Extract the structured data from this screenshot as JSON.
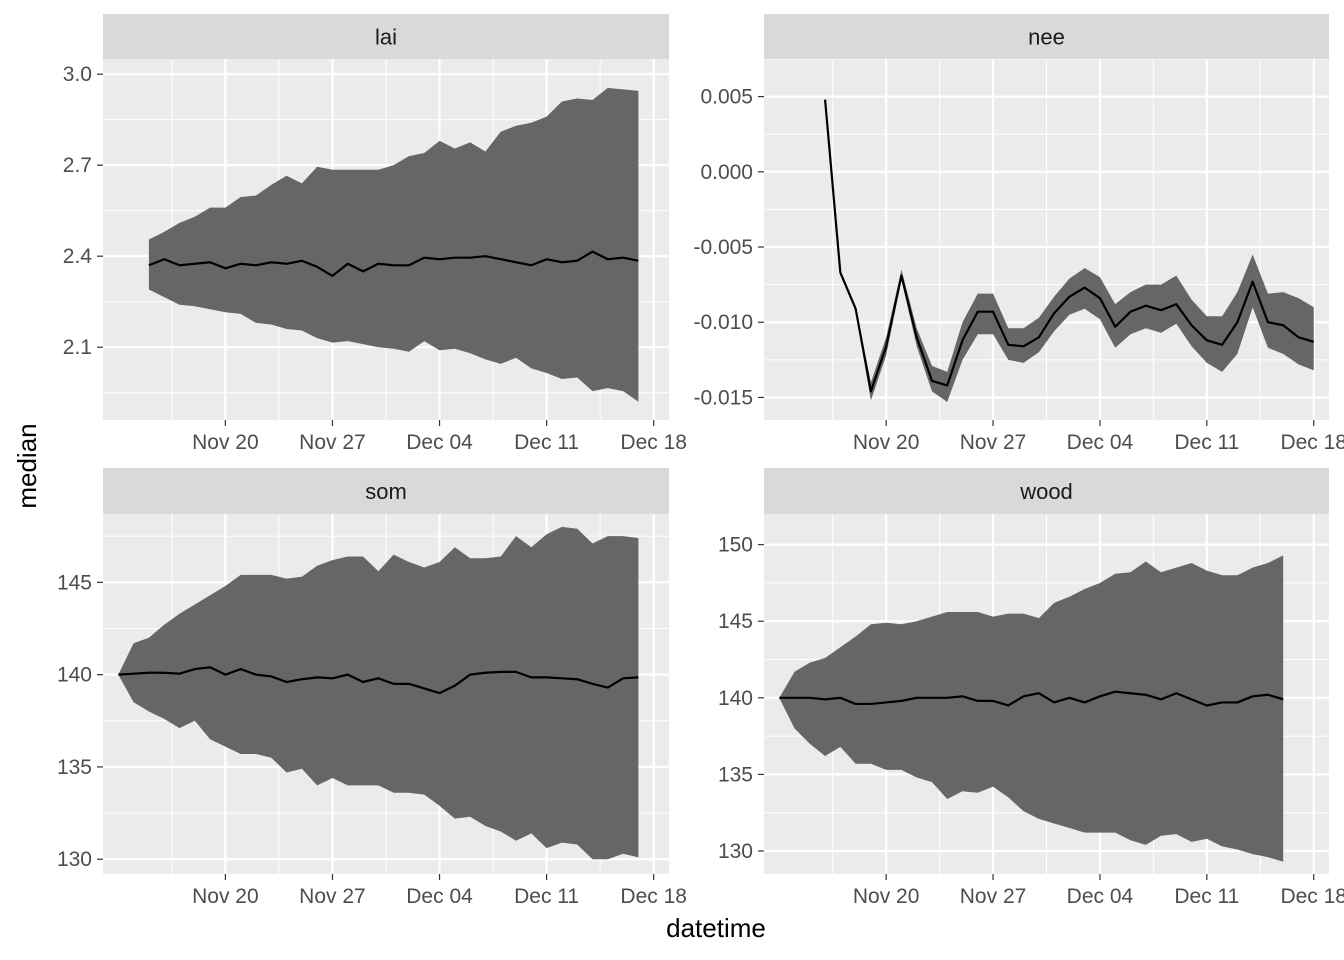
{
  "figure": {
    "xlabel": "datetime",
    "ylabel": "median"
  },
  "chart_data": {
    "type": "area",
    "description_of_marks": "faceted ribbon (gray band) with median line",
    "x": [
      "2023-11-16",
      "2023-11-17",
      "2023-11-18",
      "2023-11-19",
      "2023-11-20",
      "2023-11-21",
      "2023-11-22",
      "2023-11-23",
      "2023-11-24",
      "2023-11-25",
      "2023-11-26",
      "2023-11-27",
      "2023-11-28",
      "2023-11-29",
      "2023-11-30",
      "2023-12-01",
      "2023-12-02",
      "2023-12-03",
      "2023-12-04",
      "2023-12-05",
      "2023-12-06",
      "2023-12-07",
      "2023-12-08",
      "2023-12-09",
      "2023-12-10",
      "2023-12-11",
      "2023-12-12",
      "2023-12-13",
      "2023-12-14",
      "2023-12-15",
      "2023-12-16",
      "2023-12-17",
      "2023-12-18"
    ],
    "x_ticks": [
      {
        "date": "2023-11-20",
        "label": "Nov 20"
      },
      {
        "date": "2023-11-27",
        "label": "Nov 27"
      },
      {
        "date": "2023-12-04",
        "label": "Dec 04"
      },
      {
        "date": "2023-12-11",
        "label": "Dec 11"
      },
      {
        "date": "2023-12-18",
        "label": "Dec 18"
      }
    ],
    "xlim": [
      "2023-11-12",
      "2023-12-19"
    ],
    "grid": true,
    "colors": {
      "panel_background": "#ebebeb",
      "gridline": "#ffffff",
      "strip_background": "#d9d9d9",
      "ribbon": "#666666",
      "median_line": "#000000"
    },
    "panels": [
      {
        "name": "lai",
        "x_start": "2023-11-15",
        "ylim": [
          1.86,
          3.05
        ],
        "y_ticks": [
          {
            "value": 2.1,
            "label": "2.1"
          },
          {
            "value": 2.4,
            "label": "2.4"
          },
          {
            "value": 2.7,
            "label": "2.7"
          },
          {
            "value": 3.0,
            "label": "3.0"
          }
        ],
        "median": [
          2.37,
          2.39,
          2.37,
          2.375,
          2.38,
          2.36,
          2.375,
          2.37,
          2.38,
          2.375,
          2.385,
          2.365,
          2.335,
          2.375,
          2.35,
          2.375,
          2.37,
          2.37,
          2.395,
          2.39,
          2.395,
          2.395,
          2.4,
          2.39,
          2.38,
          2.37,
          2.39,
          2.38,
          2.385,
          2.415,
          2.39,
          2.395,
          2.385
        ],
        "lower": [
          2.29,
          2.265,
          2.24,
          2.235,
          2.225,
          2.215,
          2.21,
          2.18,
          2.175,
          2.16,
          2.155,
          2.13,
          2.115,
          2.12,
          2.11,
          2.1,
          2.095,
          2.085,
          2.12,
          2.09,
          2.095,
          2.08,
          2.06,
          2.045,
          2.065,
          2.03,
          2.015,
          1.995,
          2.0,
          1.955,
          1.965,
          1.955,
          1.92
        ],
        "upper": [
          2.455,
          2.48,
          2.51,
          2.53,
          2.56,
          2.56,
          2.595,
          2.6,
          2.635,
          2.665,
          2.64,
          2.695,
          2.685,
          2.685,
          2.685,
          2.685,
          2.7,
          2.73,
          2.74,
          2.78,
          2.755,
          2.775,
          2.745,
          2.81,
          2.83,
          2.84,
          2.86,
          2.91,
          2.92,
          2.915,
          2.955,
          2.95,
          2.945
        ]
      },
      {
        "name": "nee",
        "x_start": "2023-11-16",
        "ylim": [
          -0.0165,
          0.0075
        ],
        "y_ticks": [
          {
            "value": -0.015,
            "label": "-0.015"
          },
          {
            "value": -0.01,
            "label": "-0.010"
          },
          {
            "value": -0.005,
            "label": "-0.005"
          },
          {
            "value": 0.0,
            "label": "0.000"
          },
          {
            "value": 0.005,
            "label": "0.005"
          }
        ],
        "median": [
          0.0048,
          -0.0067,
          -0.0091,
          -0.0146,
          -0.0116,
          -0.0069,
          -0.011,
          -0.0139,
          -0.0142,
          -0.0112,
          -0.0093,
          -0.0093,
          -0.0115,
          -0.0116,
          -0.011,
          -0.0094,
          -0.0083,
          -0.0077,
          -0.0084,
          -0.0103,
          -0.0093,
          -0.0089,
          -0.0092,
          -0.0088,
          -0.0102,
          -0.0112,
          -0.0115,
          -0.01,
          -0.0073,
          -0.01,
          -0.0102,
          -0.011,
          -0.0113
        ],
        "lower": [
          0.0048,
          -0.0068,
          -0.0093,
          -0.0152,
          -0.0122,
          -0.0072,
          -0.0116,
          -0.0146,
          -0.0153,
          -0.0125,
          -0.0108,
          -0.0108,
          -0.0125,
          -0.0127,
          -0.012,
          -0.0106,
          -0.0095,
          -0.0091,
          -0.0098,
          -0.0117,
          -0.0108,
          -0.0104,
          -0.0107,
          -0.0101,
          -0.0116,
          -0.0127,
          -0.0133,
          -0.0121,
          -0.009,
          -0.0117,
          -0.0121,
          -0.0128,
          -0.0132
        ],
        "upper": [
          0.0048,
          -0.0066,
          -0.0089,
          -0.014,
          -0.011,
          -0.0065,
          -0.0104,
          -0.0129,
          -0.0133,
          -0.01,
          -0.0081,
          -0.0081,
          -0.0104,
          -0.0104,
          -0.0097,
          -0.0083,
          -0.0071,
          -0.0064,
          -0.007,
          -0.0088,
          -0.008,
          -0.0075,
          -0.0075,
          -0.0069,
          -0.0085,
          -0.0096,
          -0.0096,
          -0.008,
          -0.0055,
          -0.0081,
          -0.008,
          -0.0084,
          -0.009
        ]
      },
      {
        "name": "som",
        "x_start": "2023-11-13",
        "ylim": [
          129.2,
          148.7
        ],
        "y_ticks": [
          {
            "value": 130,
            "label": "130"
          },
          {
            "value": 135,
            "label": "135"
          },
          {
            "value": 140,
            "label": "140"
          },
          {
            "value": 145,
            "label": "145"
          }
        ],
        "median": [
          140.0,
          140.05,
          140.1,
          140.1,
          140.05,
          140.3,
          140.4,
          140.0,
          140.3,
          140.0,
          139.9,
          139.6,
          139.75,
          139.85,
          139.8,
          140.0,
          139.6,
          139.8,
          139.5,
          139.5,
          139.25,
          139.0,
          139.4,
          140.0,
          140.1,
          140.15,
          140.15,
          139.85,
          139.85,
          139.8,
          139.75,
          139.5,
          139.3,
          139.8,
          139.85
        ],
        "lower": [
          140.0,
          138.5,
          138.0,
          137.6,
          137.1,
          137.5,
          136.5,
          136.1,
          135.7,
          135.7,
          135.5,
          134.7,
          134.9,
          134.0,
          134.4,
          134.0,
          134.0,
          134.0,
          133.6,
          133.6,
          133.5,
          132.9,
          132.2,
          132.3,
          131.8,
          131.5,
          131.0,
          131.4,
          130.6,
          130.9,
          130.8,
          130.0,
          130.0,
          130.3,
          130.1
        ],
        "upper": [
          140.0,
          141.7,
          142.0,
          142.7,
          143.3,
          143.8,
          144.3,
          144.8,
          145.4,
          145.4,
          145.4,
          145.2,
          145.3,
          145.9,
          146.2,
          146.4,
          146.4,
          145.6,
          146.5,
          146.1,
          145.8,
          146.1,
          146.9,
          146.3,
          146.3,
          146.4,
          147.5,
          146.9,
          147.6,
          148.0,
          147.9,
          147.1,
          147.5,
          147.5,
          147.4
        ]
      },
      {
        "name": "wood",
        "x_start": "2023-11-13",
        "ylim": [
          128.5,
          152.0
        ],
        "y_ticks": [
          {
            "value": 130,
            "label": "130"
          },
          {
            "value": 135,
            "label": "135"
          },
          {
            "value": 140,
            "label": "140"
          },
          {
            "value": 145,
            "label": "145"
          },
          {
            "value": 150,
            "label": "150"
          }
        ],
        "median": [
          140.0,
          140.0,
          140.0,
          139.9,
          140.0,
          139.6,
          139.6,
          139.7,
          139.8,
          140.0,
          140.0,
          140.0,
          140.1,
          139.8,
          139.8,
          139.5,
          140.1,
          140.3,
          139.7,
          140.0,
          139.7,
          140.1,
          140.4,
          140.3,
          140.2,
          139.9,
          140.3,
          139.9,
          139.5,
          139.7,
          139.7,
          140.1,
          140.2,
          139.9
        ],
        "lower": [
          140.0,
          138.0,
          137.0,
          136.2,
          136.8,
          135.7,
          135.7,
          135.3,
          135.3,
          134.8,
          134.5,
          133.4,
          133.9,
          133.8,
          134.2,
          133.5,
          132.6,
          132.1,
          131.8,
          131.5,
          131.2,
          131.2,
          131.2,
          130.7,
          130.4,
          131.0,
          131.1,
          130.6,
          130.8,
          130.3,
          130.1,
          129.8,
          129.6,
          129.3
        ],
        "upper": [
          140.0,
          141.7,
          142.3,
          142.6,
          143.3,
          144.0,
          144.8,
          144.9,
          144.8,
          145.0,
          145.3,
          145.6,
          145.6,
          145.6,
          145.3,
          145.5,
          145.5,
          145.2,
          146.2,
          146.6,
          147.1,
          147.5,
          148.1,
          148.2,
          148.9,
          148.2,
          148.5,
          148.8,
          148.3,
          148.0,
          148.0,
          148.5,
          148.8,
          149.3
        ]
      }
    ]
  }
}
